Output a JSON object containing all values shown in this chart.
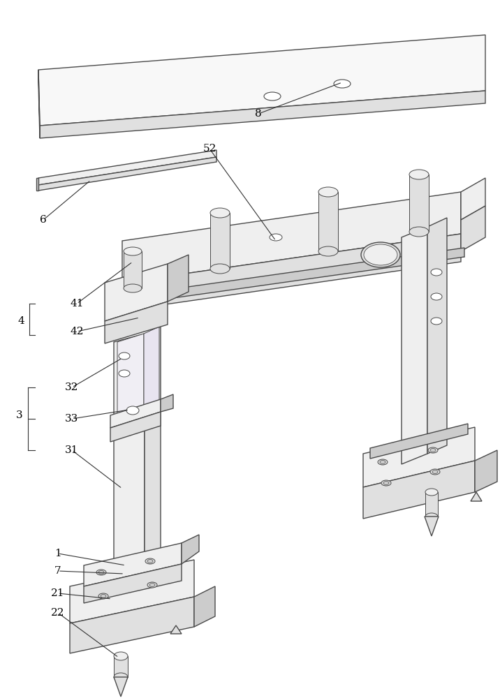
{
  "bg_color": "#ffffff",
  "line_color": "#4a4a4a",
  "line_width": 1.0,
  "thin_line": 0.7,
  "fc_white": "#f8f8f8",
  "fc_light": "#efefef",
  "fc_mid": "#e0e0e0",
  "fc_dark": "#cccccc",
  "fc_darker": "#b8b8b8",
  "fc_purple_hint": "#f0eef4",
  "fc_purple_side": "#e8e4f0",
  "label_color": "#000000",
  "label_fs": 11,
  "leader_lw": 0.8,
  "leader_color": "#333333"
}
